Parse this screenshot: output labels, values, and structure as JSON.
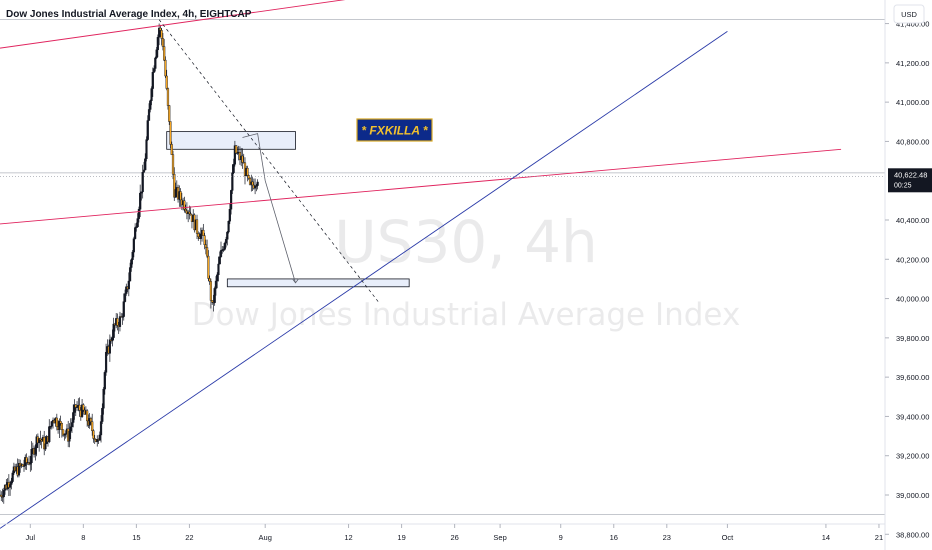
{
  "header": {
    "title": "Dow Jones Industrial Average Index, 4h, EIGHTCAP",
    "currency": "USD"
  },
  "watermark": {
    "symbol": "US30, 4h",
    "description": "Dow Jones Industrial Average Index"
  },
  "badge": {
    "text": "* FXKILLA *",
    "bg_color": "#0c2a8a",
    "border_color": "#d9a821",
    "text_color": "#f2c12e"
  },
  "price_marker": {
    "price": 40622.48,
    "label": "40,622.48",
    "countdown": "00:25"
  },
  "colors": {
    "up_candle": "#26a69a",
    "down_candle": "#f5a623",
    "body_dark": "#131722",
    "channel_line": "#e0245e",
    "trend_line": "#2a3aa8",
    "zone_fill": "#e8eefa",
    "zone_border": "#131722"
  },
  "chart_data": {
    "type": "candlestick",
    "y_axis_ticks": [
      "41,400.00",
      "41,200.00",
      "41,000.00",
      "40,800.00",
      "40,400.00",
      "40,200.00",
      "40,000.00",
      "39,800.00",
      "39,600.00",
      "39,400.00",
      "39,200.00",
      "39,000.00",
      "38,800.00"
    ],
    "y_axis_values": [
      41400,
      41200,
      41000,
      40800,
      40400,
      40200,
      40000,
      39800,
      39600,
      39400,
      39200,
      39000,
      38800
    ],
    "ylim": [
      38720,
      41520
    ],
    "x_axis_ticks": [
      "Jul",
      "8",
      "15",
      "22",
      "Aug",
      "12",
      "19",
      "26",
      "Sep",
      "9",
      "16",
      "23",
      "Oct",
      "14",
      "21"
    ],
    "x_axis_dates": [
      "2024-07-01",
      "2024-07-08",
      "2024-07-15",
      "2024-07-22",
      "2024-08-01",
      "2024-08-12",
      "2024-08-19",
      "2024-08-26",
      "2024-09-01",
      "2024-09-09",
      "2024-09-16",
      "2024-09-23",
      "2024-10-01",
      "2024-10-14",
      "2024-10-21"
    ],
    "xlim": [
      "2024-06-27",
      "2024-10-28"
    ],
    "price_path": [
      [
        "2024-06-27",
        39000
      ],
      [
        "2024-06-29",
        39120
      ],
      [
        "2024-07-01",
        39180
      ],
      [
        "2024-07-02",
        39300
      ],
      [
        "2024-07-03",
        39250
      ],
      [
        "2024-07-04",
        39400
      ],
      [
        "2024-07-05",
        39350
      ],
      [
        "2024-07-06",
        39300
      ],
      [
        "2024-07-07",
        39450
      ],
      [
        "2024-07-08",
        39420
      ],
      [
        "2024-07-09",
        39350
      ],
      [
        "2024-07-10",
        39250
      ],
      [
        "2024-07-11",
        39700
      ],
      [
        "2024-07-12",
        39850
      ],
      [
        "2024-07-13",
        39900
      ],
      [
        "2024-07-14",
        40100
      ],
      [
        "2024-07-15",
        40400
      ],
      [
        "2024-07-16",
        40650
      ],
      [
        "2024-07-17",
        41100
      ],
      [
        "2024-07-17T12",
        41250
      ],
      [
        "2024-07-18",
        41380
      ],
      [
        "2024-07-18T12",
        41300
      ],
      [
        "2024-07-19",
        41050
      ],
      [
        "2024-07-19T12",
        40800
      ],
      [
        "2024-07-20",
        40550
      ],
      [
        "2024-07-21",
        40500
      ],
      [
        "2024-07-22",
        40450
      ],
      [
        "2024-07-23",
        40350
      ],
      [
        "2024-07-24",
        40300
      ],
      [
        "2024-07-25",
        39950
      ],
      [
        "2024-07-26",
        40200
      ],
      [
        "2024-07-27",
        40350
      ],
      [
        "2024-07-28",
        40750
      ],
      [
        "2024-07-29",
        40700
      ],
      [
        "2024-07-30",
        40560
      ],
      [
        "2024-07-31",
        40620
      ]
    ],
    "zones": [
      {
        "x": [
          "2024-07-19",
          "2024-08-05"
        ],
        "y": [
          40760,
          40850
        ]
      },
      {
        "x": [
          "2024-07-27",
          "2024-08-20"
        ],
        "y": [
          40060,
          40100
        ]
      }
    ],
    "lines": [
      {
        "kind": "upper-channel",
        "from": [
          "2024-06-27",
          41275
        ],
        "to": [
          "2024-09-29",
          41785
        ]
      },
      {
        "kind": "lower-channel",
        "from": [
          "2024-06-27",
          40380
        ],
        "to": [
          "2024-10-16",
          40760
        ]
      },
      {
        "kind": "rising-trendline",
        "from": [
          "2024-06-27",
          38830
        ],
        "to": [
          "2024-10-01",
          41360
        ]
      },
      {
        "kind": "dashed-decline",
        "from": [
          "2024-07-18",
          41420
        ],
        "to": [
          "2024-08-16",
          39980
        ]
      }
    ],
    "projection": {
      "points": [
        [
          "2024-07-29",
          40820
        ],
        [
          "2024-07-31",
          40840
        ],
        [
          "2024-08-01",
          40600
        ],
        [
          "2024-08-05",
          40080
        ]
      ]
    },
    "horizontal_levels": [
      41420,
      40640,
      38900
    ],
    "grid": false
  }
}
